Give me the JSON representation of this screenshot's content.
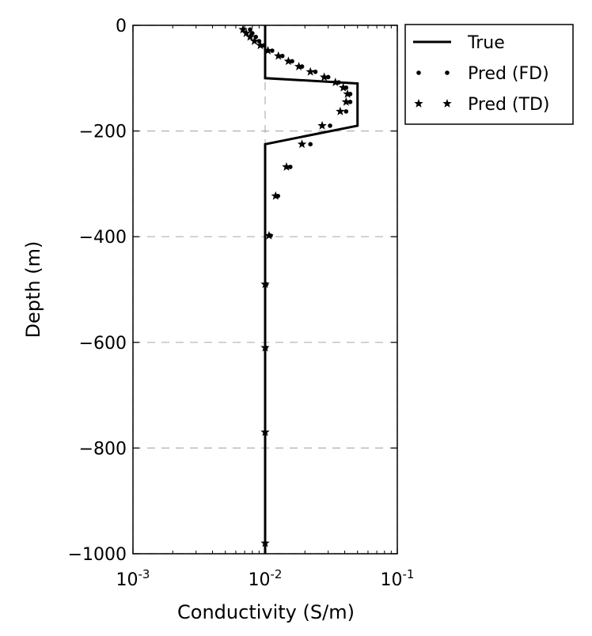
{
  "chart_data": {
    "type": "scatter",
    "xlabel": "Conductivity (S/m)",
    "ylabel": "Depth (m)",
    "x_scale": "log",
    "xlim": [
      0.001,
      0.1
    ],
    "ylim": [
      -1000,
      0
    ],
    "x_ticks": [
      {
        "value": 0.001,
        "base": "10",
        "exp": "-3"
      },
      {
        "value": 0.01,
        "base": "10",
        "exp": "-2"
      },
      {
        "value": 0.1,
        "base": "10",
        "exp": "-1"
      }
    ],
    "y_ticks": [
      {
        "value": 0,
        "label": "0"
      },
      {
        "value": -200,
        "label": "−200"
      },
      {
        "value": -400,
        "label": "−400"
      },
      {
        "value": -600,
        "label": "−600"
      },
      {
        "value": -800,
        "label": "−800"
      },
      {
        "value": -1000,
        "label": "−1000"
      }
    ],
    "grid": "horizontal dashed",
    "legend_position": "outside top-right",
    "legend": [
      {
        "label": "True",
        "marker": "line"
      },
      {
        "label": "Pred (FD)",
        "marker": "dot"
      },
      {
        "label": "Pred (TD)",
        "marker": "star"
      }
    ],
    "series": [
      {
        "name": "True",
        "style": "line",
        "color": "#000000",
        "points": [
          {
            "x": 0.01,
            "y": 0
          },
          {
            "x": 0.01,
            "y": -100
          },
          {
            "x": 0.05,
            "y": -110
          },
          {
            "x": 0.05,
            "y": -190
          },
          {
            "x": 0.01,
            "y": -225
          },
          {
            "x": 0.01,
            "y": -1000
          }
        ]
      },
      {
        "name": "Pred (FD)",
        "style": "dot",
        "color": "#000000",
        "points": [
          {
            "x": 0.0077,
            "y": -8
          },
          {
            "x": 0.008,
            "y": -15
          },
          {
            "x": 0.0085,
            "y": -22
          },
          {
            "x": 0.009,
            "y": -30
          },
          {
            "x": 0.0098,
            "y": -38
          },
          {
            "x": 0.0113,
            "y": -48
          },
          {
            "x": 0.0135,
            "y": -58
          },
          {
            "x": 0.016,
            "y": -68
          },
          {
            "x": 0.019,
            "y": -78
          },
          {
            "x": 0.024,
            "y": -88
          },
          {
            "x": 0.03,
            "y": -98
          },
          {
            "x": 0.036,
            "y": -108
          },
          {
            "x": 0.041,
            "y": -118
          },
          {
            "x": 0.044,
            "y": -130
          },
          {
            "x": 0.044,
            "y": -145
          },
          {
            "x": 0.041,
            "y": -163
          },
          {
            "x": 0.031,
            "y": -190
          },
          {
            "x": 0.022,
            "y": -225
          },
          {
            "x": 0.0155,
            "y": -268
          },
          {
            "x": 0.0125,
            "y": -323
          },
          {
            "x": 0.011,
            "y": -398
          },
          {
            "x": 0.0102,
            "y": -490
          },
          {
            "x": 0.0101,
            "y": -610
          },
          {
            "x": 0.01,
            "y": -770
          },
          {
            "x": 0.01,
            "y": -980
          }
        ]
      },
      {
        "name": "Pred (TD)",
        "style": "star",
        "color": "#000000",
        "points": [
          {
            "x": 0.0068,
            "y": -8
          },
          {
            "x": 0.0072,
            "y": -15
          },
          {
            "x": 0.0077,
            "y": -22
          },
          {
            "x": 0.0083,
            "y": -30
          },
          {
            "x": 0.0092,
            "y": -38
          },
          {
            "x": 0.0105,
            "y": -48
          },
          {
            "x": 0.0126,
            "y": -58
          },
          {
            "x": 0.015,
            "y": -68
          },
          {
            "x": 0.018,
            "y": -78
          },
          {
            "x": 0.022,
            "y": -88
          },
          {
            "x": 0.028,
            "y": -98
          },
          {
            "x": 0.034,
            "y": -108
          },
          {
            "x": 0.039,
            "y": -118
          },
          {
            "x": 0.042,
            "y": -130
          },
          {
            "x": 0.041,
            "y": -145
          },
          {
            "x": 0.037,
            "y": -163
          },
          {
            "x": 0.027,
            "y": -190
          },
          {
            "x": 0.019,
            "y": -225
          },
          {
            "x": 0.0145,
            "y": -268
          },
          {
            "x": 0.012,
            "y": -323
          },
          {
            "x": 0.0107,
            "y": -398
          },
          {
            "x": 0.01,
            "y": -490
          },
          {
            "x": 0.01,
            "y": -610
          },
          {
            "x": 0.01,
            "y": -770
          },
          {
            "x": 0.01,
            "y": -980
          }
        ]
      }
    ]
  }
}
